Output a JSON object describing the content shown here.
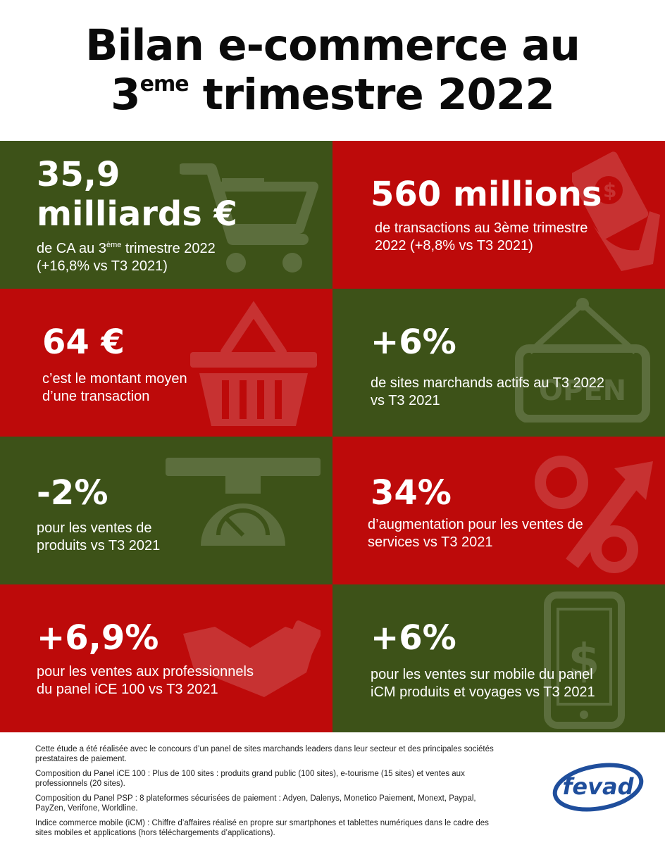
{
  "title": {
    "line1": "Bilan e-commerce au",
    "line2_num": "3",
    "line2_sup": "eme",
    "line2_rest": " trimestre 2022"
  },
  "tiles": [
    {
      "big1": "35,9",
      "big2": "milliards €",
      "desc_a": "de CA au 3",
      "desc_sup": "ème",
      "desc_b": " trimestre 2022",
      "desc2": "(+16,8% vs T3 2021)",
      "icon": "shopping-cart-icon"
    },
    {
      "big": "560 millions",
      "desc": "de transactions au 3ème trimestre",
      "desc2": "2022 (+8,8% vs T3 2021)",
      "icon": "money-hand-icon"
    },
    {
      "big": "64 €",
      "desc": "c’est le montant moyen",
      "desc2": "d’une transaction",
      "icon": "basket-icon"
    },
    {
      "big": "+6%",
      "desc": "de sites marchands actifs au T3 2022",
      "desc2": "vs T3 2021",
      "icon": "open-sign-icon",
      "sign_text": "OPEN"
    },
    {
      "big": "-2%",
      "desc": "pour les ventes de",
      "desc2": "produits vs T3 2021",
      "icon": "scale-icon"
    },
    {
      "big": "34%",
      "desc": "d’augmentation pour les ventes de",
      "desc2": "services vs T3 2021",
      "icon": "percent-arrow-icon"
    },
    {
      "big": "+6,9%",
      "desc": "pour les ventes aux professionnels",
      "desc2": "du panel iCE 100 vs T3 2021",
      "icon": "handshake-icon"
    },
    {
      "big": "+6%",
      "desc": "pour les ventes sur mobile du panel",
      "desc2": "iCM produits et voyages vs T3 2021",
      "icon": "mobile-dollar-icon"
    }
  ],
  "footer": {
    "p1": "Cette étude a été réalisée avec le concours d’un panel de sites marchands leaders dans leur secteur et des principales sociétés prestataires de paiement.",
    "p2": "Composition du Panel iCE 100 : Plus de 100 sites : produits grand public (100 sites), e-tourisme (15 sites) et ventes aux professionnels (20 sites).",
    "p3": "Composition du Panel PSP : 8 plateformes sécurisées de paiement : Adyen, Dalenys, Monetico Paiement, Monext, Paypal, PayZen, Verifone, Worldline.",
    "p4": "Indice commerce mobile (iCM) : Chiffre d’affaires réalisé en propre sur smartphones et tablettes numériques dans le cadre des sites mobiles et applications (hors téléchargements d’applications)."
  },
  "logo": {
    "text": "fevad",
    "color": "#1f4e9c"
  },
  "colors": {
    "green": "#3d5218",
    "red": "#bd0a0a"
  }
}
